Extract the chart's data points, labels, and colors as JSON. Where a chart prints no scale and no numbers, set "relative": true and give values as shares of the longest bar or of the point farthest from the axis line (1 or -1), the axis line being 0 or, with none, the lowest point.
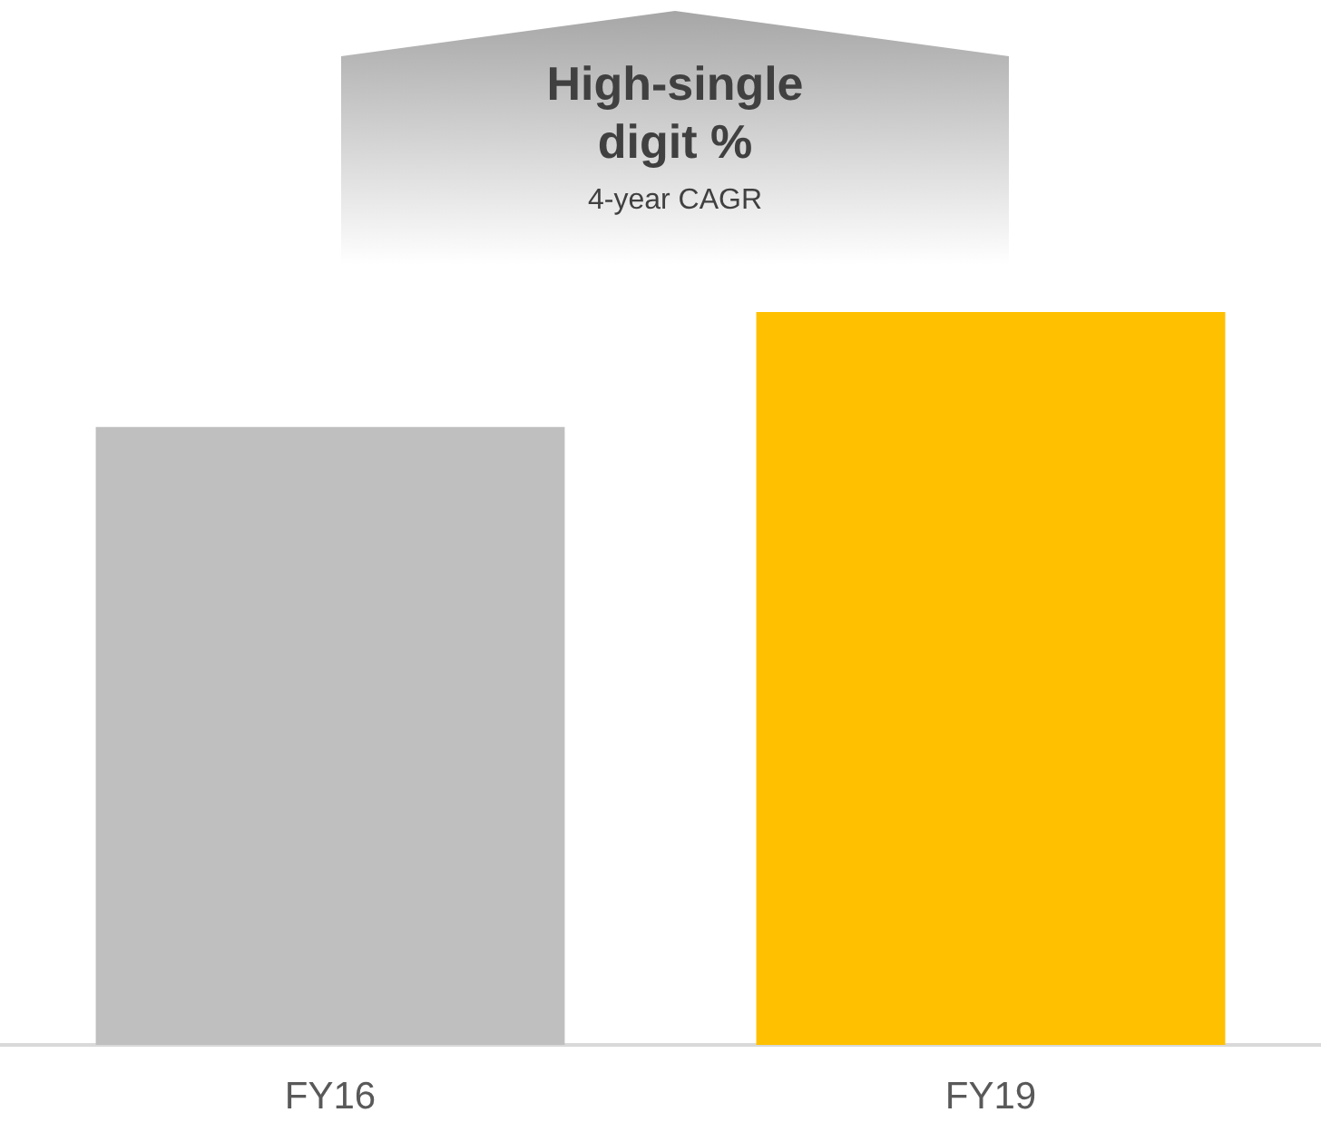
{
  "chart_data": {
    "type": "bar",
    "relative": true,
    "categories": [
      "FY16",
      "FY19"
    ],
    "values": [
      0.843,
      1
    ],
    "colors": [
      "#bfbfbf",
      "#ffc000"
    ],
    "annotations": [
      "High-single digit %",
      "4-year CAGR"
    ]
  }
}
